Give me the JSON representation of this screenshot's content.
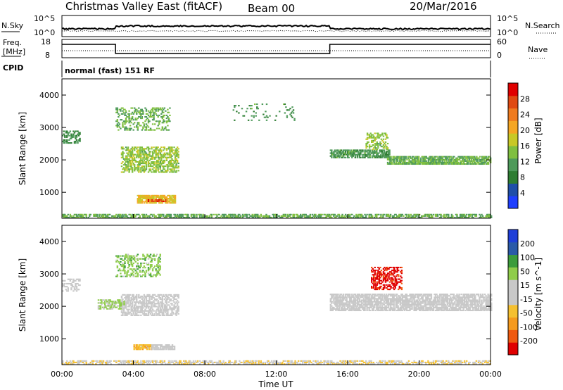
{
  "header": {
    "title": "Christmas Valley East (fitACF)",
    "beam": "Beam 00",
    "date": "20/Mar/2016"
  },
  "noise_panel": {
    "left_label": "N.Sky",
    "right_label": "N.Search",
    "left_top_tick": "10^5",
    "left_bottom_tick": "10^0",
    "right_top_tick": "10^5",
    "right_bottom_tick": "10^0"
  },
  "freq_panel": {
    "left_label_line1": "Freq.",
    "left_label_line2": "[MHz]",
    "left_ticks": [
      "18",
      "8"
    ],
    "right_label": "Nave",
    "right_ticks": [
      "60",
      "0"
    ]
  },
  "cpid_panel": {
    "label": "CPID",
    "text": "normal (fast) 151 RF"
  },
  "x_axis": {
    "label": "Time UT",
    "ticks": [
      "00:00",
      "04:00",
      "08:00",
      "12:00",
      "16:00",
      "20:00",
      "00:00"
    ]
  },
  "colors": {
    "power_scale": [
      "#1f3fff",
      "#1f4fa8",
      "#2e7d32",
      "#4e9a5a",
      "#7fbf3f",
      "#c8c826",
      "#f5a623",
      "#ef7b1f",
      "#e04a12",
      "#e00000"
    ],
    "velocity_scale": [
      "#e00000",
      "#ef5a10",
      "#f59a1e",
      "#f5c030",
      "#c8c8c8",
      "#c8c8c8",
      "#8fcc4a",
      "#3c9c3c",
      "#2a5aa8",
      "#1f3fd8"
    ],
    "ground_scatter": "#c0c0c0"
  },
  "chart_data": [
    {
      "type": "heatmap",
      "panel": "Power",
      "ylabel": "Slant Range [km]",
      "xlabel": "",
      "y_ticks": [
        "1000",
        "2000",
        "3000",
        "4000"
      ],
      "ylim": [
        200,
        4500
      ],
      "xlim": [
        0,
        24
      ],
      "colorbar_label": "Power [dB]",
      "colorbar_ticks": [
        "4",
        "8",
        "12",
        "16",
        "20",
        "24",
        "28"
      ],
      "colorbar_range": [
        0,
        30
      ],
      "regions": [
        {
          "t0": 0.0,
          "t1": 1.0,
          "r0": 2500,
          "r1": 2900,
          "v": 9,
          "density": 0.45
        },
        {
          "t0": 3.3,
          "t1": 6.5,
          "r0": 1600,
          "r1": 2400,
          "v": 14,
          "density": 0.55
        },
        {
          "t0": 3.0,
          "t1": 6.0,
          "r0": 2900,
          "r1": 3600,
          "v": 12,
          "density": 0.35
        },
        {
          "t0": 4.2,
          "t1": 6.3,
          "r0": 650,
          "r1": 880,
          "v": 18,
          "density": 0.8
        },
        {
          "t0": 4.8,
          "t1": 5.8,
          "r0": 700,
          "r1": 790,
          "v": 26,
          "density": 0.7
        },
        {
          "t0": 15.0,
          "t1": 18.3,
          "r0": 2050,
          "r1": 2300,
          "v": 10,
          "density": 0.7
        },
        {
          "t0": 18.2,
          "t1": 24.0,
          "r0": 1850,
          "r1": 2100,
          "v": 12,
          "density": 0.8
        },
        {
          "t0": 17.0,
          "t1": 18.2,
          "r0": 2300,
          "r1": 2800,
          "v": 14,
          "density": 0.45
        },
        {
          "t0": 9.5,
          "t1": 13.0,
          "r0": 3200,
          "r1": 3700,
          "v": 10,
          "density": 0.08
        },
        {
          "t0": 0.0,
          "t1": 24.0,
          "r0": 200,
          "r1": 330,
          "v": 12,
          "density": 0.6
        }
      ]
    },
    {
      "type": "heatmap",
      "panel": "Velocity",
      "ylabel": "Slant Range [km]",
      "xlabel": "Time UT",
      "y_ticks": [
        "1000",
        "2000",
        "3000",
        "4000"
      ],
      "ylim": [
        200,
        4500
      ],
      "xlim": [
        0,
        24
      ],
      "colorbar_label": "Velocity [m s^-1]",
      "colorbar_ticks": [
        "-200",
        "-100",
        "-50",
        "-15",
        "15",
        "50",
        "100",
        "200"
      ],
      "colorbar_range": [
        -250,
        250
      ],
      "regions": [
        {
          "t0": 0.0,
          "t1": 1.0,
          "r0": 2450,
          "r1": 2850,
          "v": 0,
          "density": 0.45
        },
        {
          "t0": 3.3,
          "t1": 6.5,
          "r0": 1700,
          "r1": 2350,
          "v": 0,
          "density": 0.6
        },
        {
          "t0": 2.0,
          "t1": 3.5,
          "r0": 1900,
          "r1": 2200,
          "v": 60,
          "density": 0.6
        },
        {
          "t0": 3.0,
          "t1": 5.5,
          "r0": 2900,
          "r1": 3600,
          "v": 80,
          "density": 0.35
        },
        {
          "t0": 4.0,
          "t1": 5.0,
          "r0": 650,
          "r1": 820,
          "v": -80,
          "density": 0.9
        },
        {
          "t0": 5.0,
          "t1": 6.3,
          "r0": 650,
          "r1": 820,
          "v": 0,
          "density": 0.85
        },
        {
          "t0": 15.0,
          "t1": 24.0,
          "r0": 1850,
          "r1": 2350,
          "v": 0,
          "density": 0.75
        },
        {
          "t0": 17.3,
          "t1": 19.0,
          "r0": 2500,
          "r1": 3200,
          "v": -220,
          "density": 0.5
        },
        {
          "t0": 0.0,
          "t1": 24.0,
          "r0": 200,
          "r1": 330,
          "v": -40,
          "density": 0.55
        }
      ]
    }
  ]
}
